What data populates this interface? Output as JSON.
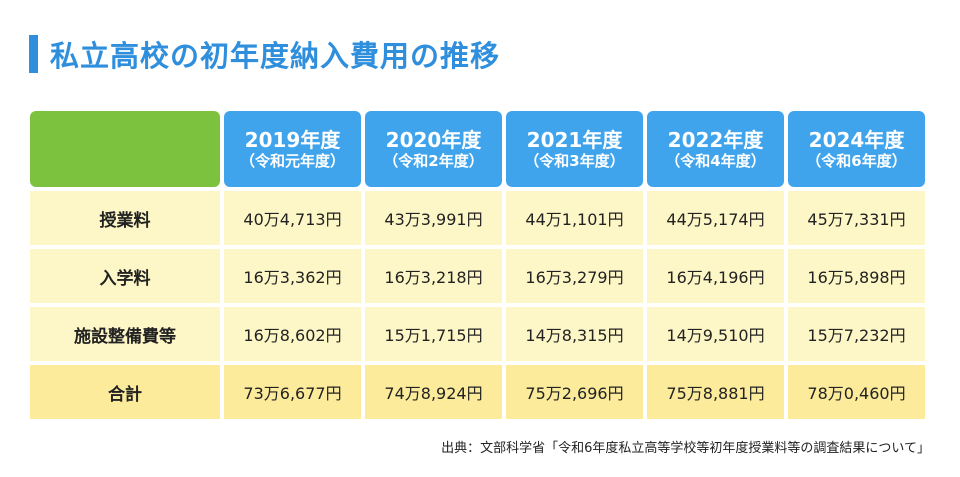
{
  "title": "私立高校の初年度納入費用の推移",
  "header": {
    "years": [
      {
        "year": "2019年度",
        "era": "（令和元年度）"
      },
      {
        "year": "2020年度",
        "era": "（令和2年度）"
      },
      {
        "year": "2021年度",
        "era": "（令和3年度）"
      },
      {
        "year": "2022年度",
        "era": "（令和4年度）"
      },
      {
        "year": "2024年度",
        "era": "（令和6年度）"
      }
    ]
  },
  "rows": [
    {
      "label": "授業料",
      "values": [
        "40万4,713円",
        "43万3,991円",
        "44万1,101円",
        "44万5,174円",
        "45万7,331円"
      ]
    },
    {
      "label": "入学料",
      "values": [
        "16万3,362円",
        "16万3,218円",
        "16万3,279円",
        "16万4,196円",
        "16万5,898円"
      ]
    },
    {
      "label": "施設整備費等",
      "values": [
        "16万8,602円",
        "15万1,715円",
        "14万8,315円",
        "14万9,510円",
        "15万7,232円"
      ]
    },
    {
      "label": "合計",
      "values": [
        "73万6,677円",
        "74万8,924円",
        "75万2,696円",
        "75万8,881円",
        "78万0,460円"
      ]
    }
  ],
  "source": "出典：文部科学省「令和6年度私立高等学校等初年度授業料等の調査結果について」",
  "colors": {
    "accent": "#2f8fdc",
    "header_year_bg": "#40a4ec",
    "header_corner_bg": "#7cc23f",
    "row_bg": "#fdf6c6",
    "total_bg": "#fbeb9a"
  }
}
